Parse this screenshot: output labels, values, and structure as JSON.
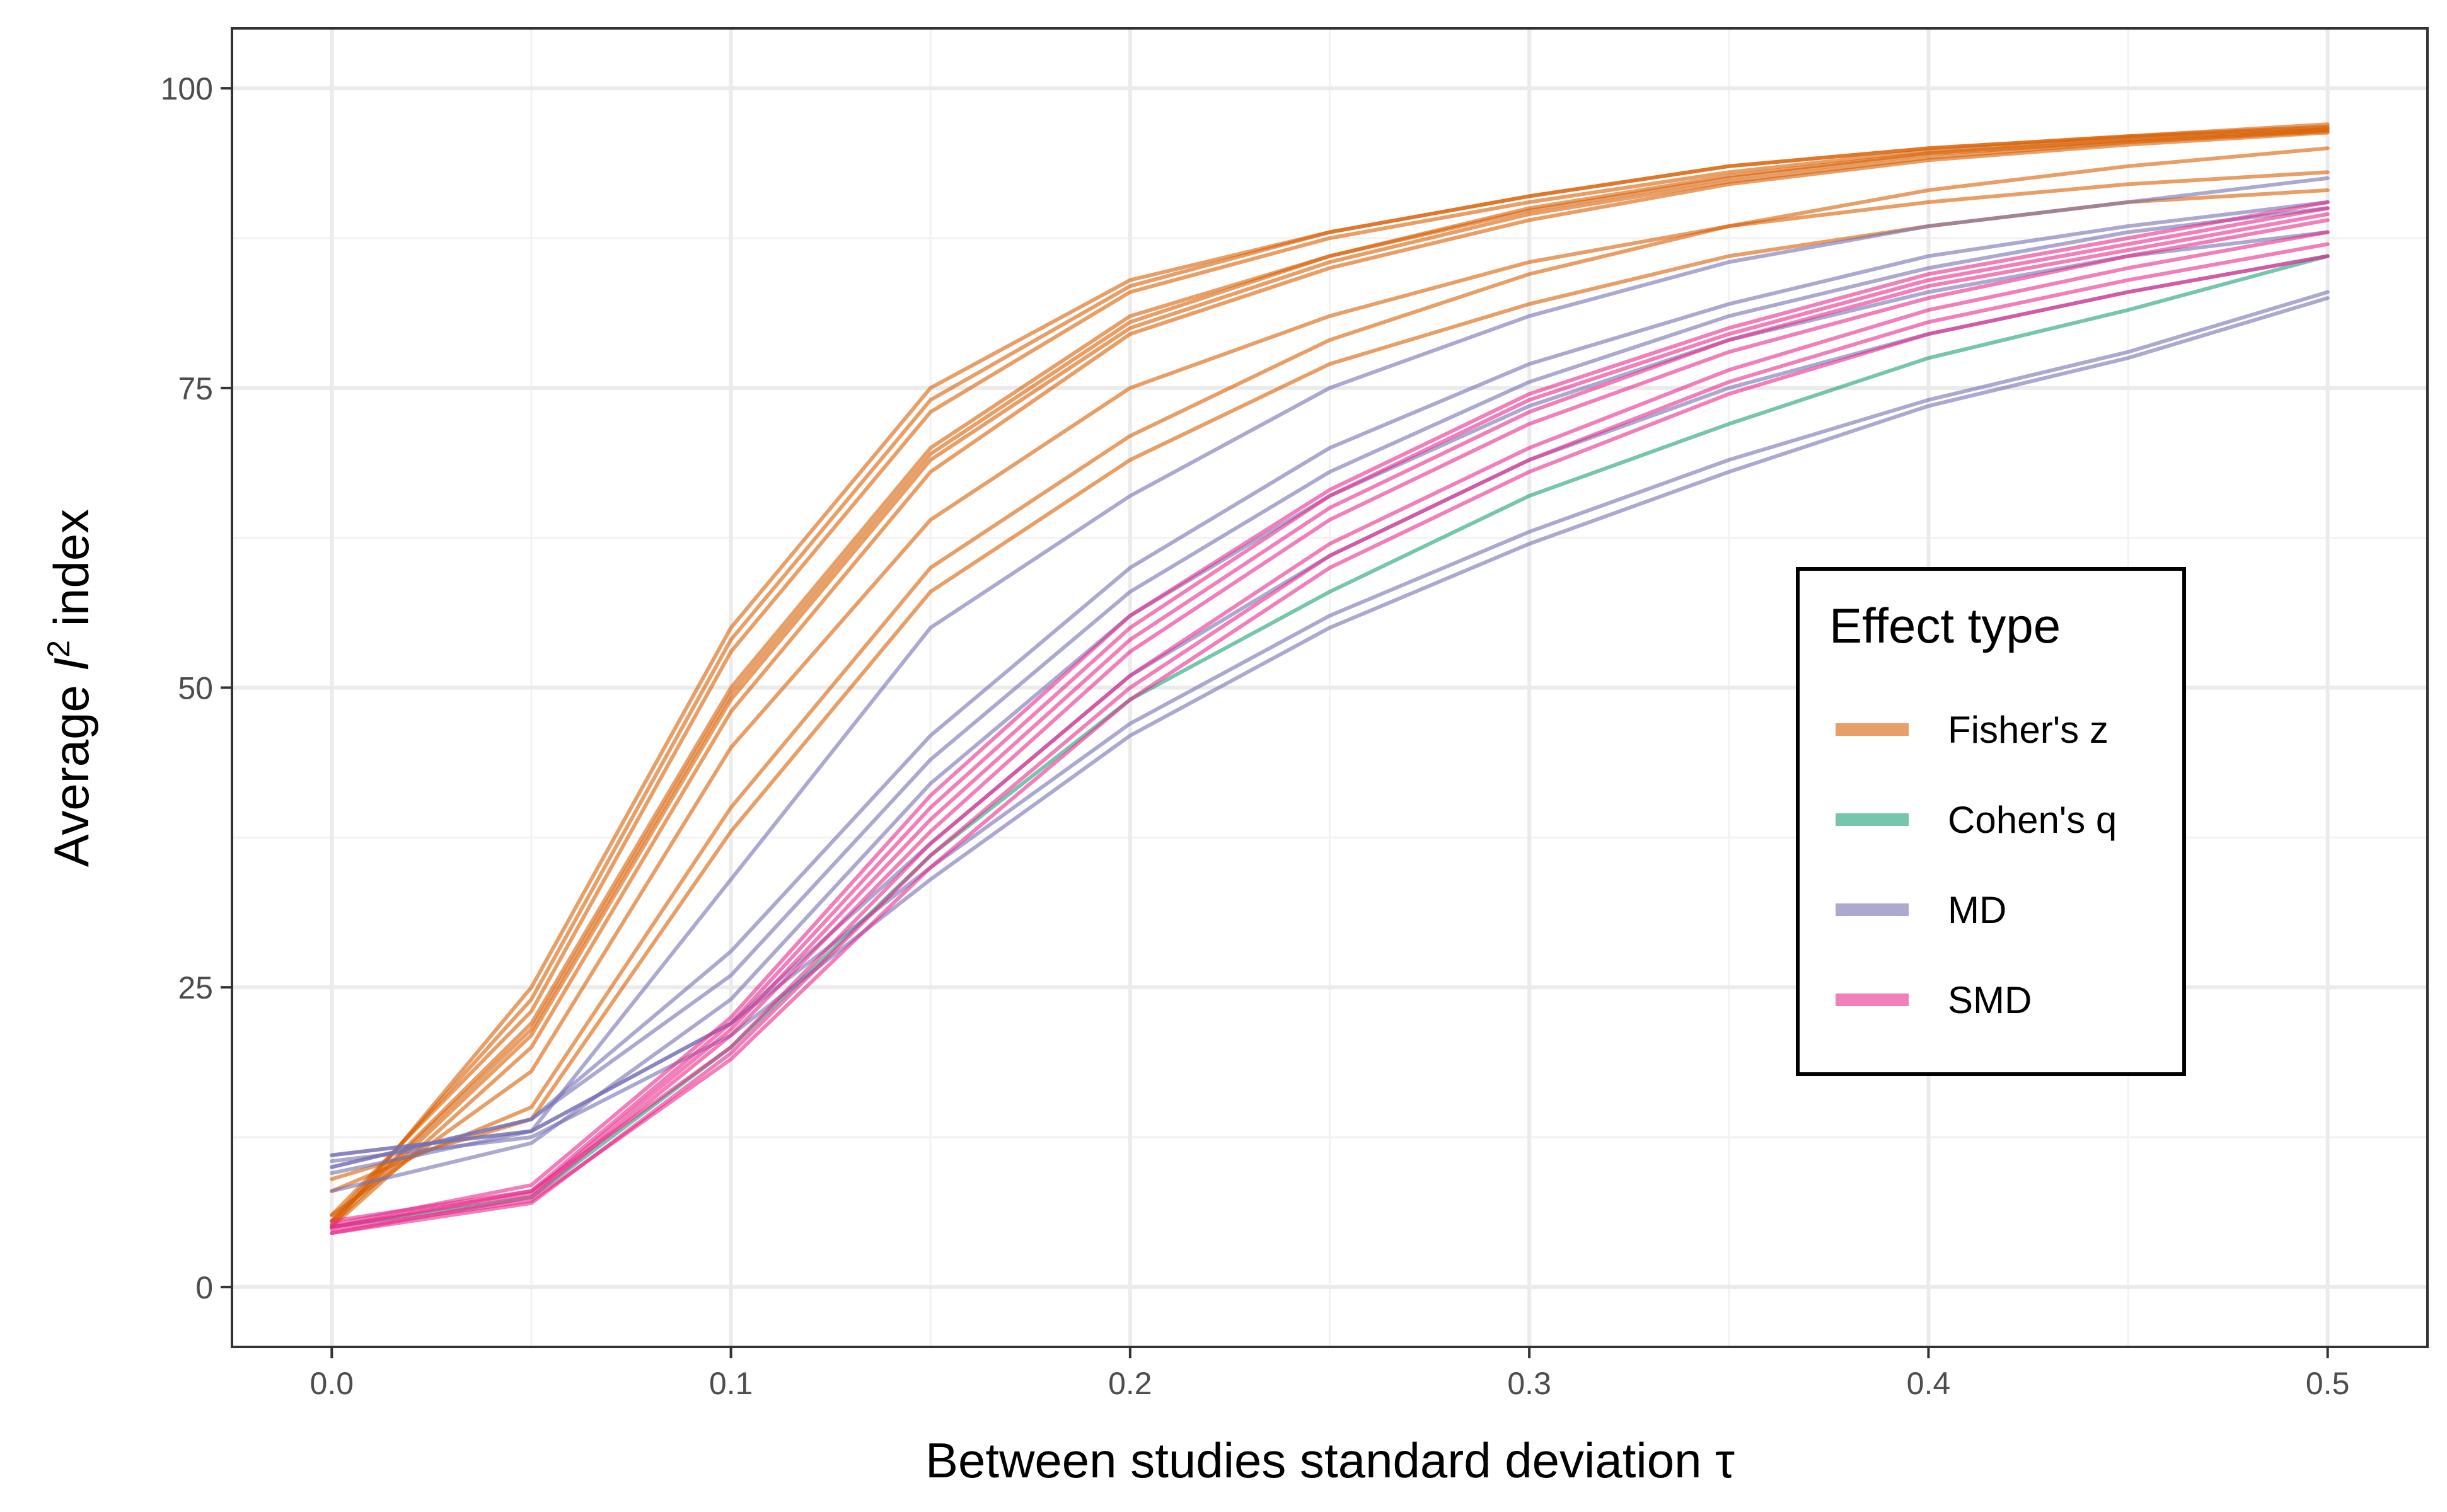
{
  "chart_data": {
    "type": "line",
    "xlabel": "Between studies standard deviation τ",
    "ylabel_parts": [
      "Average ",
      "I",
      "2",
      " index"
    ],
    "xlim": [
      -0.025,
      0.525
    ],
    "ylim": [
      -5,
      105
    ],
    "x_ticks": [
      0.0,
      0.1,
      0.2,
      0.3,
      0.4,
      0.5
    ],
    "x_tick_labels": [
      "0.0",
      "0.1",
      "0.2",
      "0.3",
      "0.4",
      "0.5"
    ],
    "y_ticks": [
      0,
      25,
      50,
      75,
      100
    ],
    "y_tick_labels": [
      "0",
      "25",
      "50",
      "75",
      "100"
    ],
    "grid": true,
    "legend": {
      "title": "Effect type",
      "placement": "right-inside",
      "entries": [
        {
          "label": "Fisher's z",
          "color": "#D95F02"
        },
        {
          "label": "Cohen's q",
          "color": "#1B9E77"
        },
        {
          "label": "MD",
          "color": "#7570B3"
        },
        {
          "label": "SMD",
          "color": "#E7298A"
        }
      ]
    },
    "x": [
      0.0,
      0.05,
      0.1,
      0.15,
      0.2,
      0.25,
      0.3,
      0.35,
      0.4,
      0.45,
      0.5
    ],
    "series": [
      {
        "group": "Fisher's z",
        "color": "#D95F02",
        "values": [
          5,
          25,
          55,
          75,
          84,
          88,
          91,
          93.5,
          95,
          96,
          97
        ]
      },
      {
        "group": "Fisher's z",
        "color": "#D95F02",
        "values": [
          5.5,
          24,
          54,
          74,
          83.5,
          88,
          91,
          93.5,
          95,
          96,
          96.8
        ]
      },
      {
        "group": "Fisher's z",
        "color": "#D95F02",
        "values": [
          6,
          23,
          53,
          73,
          83,
          87.5,
          90.5,
          93,
          94.8,
          95.9,
          96.7
        ]
      },
      {
        "group": "Fisher's z",
        "color": "#D95F02",
        "values": [
          5.5,
          22,
          50,
          70,
          81,
          86,
          89.8,
          92.5,
          94.5,
          95.6,
          96.5
        ]
      },
      {
        "group": "Fisher's z",
        "color": "#D95F02",
        "values": [
          5.2,
          21,
          49,
          69,
          80,
          85.5,
          89.5,
          92.2,
          94.2,
          95.5,
          96.4
        ]
      },
      {
        "group": "Fisher's z",
        "color": "#D95F02",
        "values": [
          5,
          20,
          48,
          68,
          79.5,
          85,
          89,
          92,
          94,
          95.3,
          96.3
        ]
      },
      {
        "group": "Fisher's z",
        "color": "#D95F02",
        "values": [
          5.5,
          21.5,
          49.5,
          69.5,
          80.5,
          86,
          90,
          92.7,
          94.6,
          95.7,
          96.6
        ]
      },
      {
        "group": "Fisher's z",
        "color": "#D95F02",
        "values": [
          6,
          18,
          45,
          64,
          75,
          81,
          85.5,
          88.5,
          90.5,
          92,
          93
        ]
      },
      {
        "group": "Fisher's z",
        "color": "#D95F02",
        "values": [
          8,
          15,
          40,
          60,
          71,
          79,
          84.5,
          88.5,
          91.5,
          93.5,
          95
        ]
      },
      {
        "group": "Fisher's z",
        "color": "#D95F02",
        "values": [
          9,
          14,
          38,
          58,
          69,
          77,
          82,
          86,
          88.5,
          90.5,
          91.5
        ]
      },
      {
        "group": "Cohen's q",
        "color": "#1B9E77",
        "values": [
          5,
          7.5,
          20,
          36,
          49,
          58,
          66,
          72,
          77.5,
          81.5,
          86
        ]
      },
      {
        "group": "MD",
        "color": "#7570B3",
        "values": [
          11,
          13,
          22,
          35,
          47,
          56,
          63,
          69,
          74,
          78,
          83
        ]
      },
      {
        "group": "MD",
        "color": "#7570B3",
        "values": [
          10.5,
          12.5,
          21,
          34,
          46,
          55,
          62,
          68,
          73.5,
          77.5,
          82.5
        ]
      },
      {
        "group": "MD",
        "color": "#7570B3",
        "values": [
          9.5,
          13,
          22,
          37,
          51,
          61,
          69,
          75,
          79.5,
          83,
          86
        ]
      },
      {
        "group": "MD",
        "color": "#7570B3",
        "values": [
          10,
          14,
          28,
          46,
          60,
          70,
          77,
          82,
          86,
          88.5,
          90.5
        ]
      },
      {
        "group": "MD",
        "color": "#7570B3",
        "values": [
          10,
          14,
          26,
          44,
          58,
          68,
          75.5,
          81,
          85,
          88,
          90
        ]
      },
      {
        "group": "MD",
        "color": "#7570B3",
        "values": [
          11,
          13,
          34,
          55,
          66,
          75,
          81,
          85.5,
          88.5,
          90.5,
          92.5
        ]
      },
      {
        "group": "MD",
        "color": "#7570B3",
        "values": [
          8,
          12,
          24,
          42,
          56,
          66,
          73.5,
          79,
          83,
          86,
          88
        ]
      },
      {
        "group": "SMD",
        "color": "#E7298A",
        "values": [
          5,
          8,
          22,
          40,
          55,
          66,
          74,
          79.5,
          84,
          87,
          90
        ]
      },
      {
        "group": "SMD",
        "color": "#E7298A",
        "values": [
          4.5,
          7.5,
          21,
          38,
          53,
          64,
          72,
          78,
          82.5,
          86,
          89
        ]
      },
      {
        "group": "SMD",
        "color": "#E7298A",
        "values": [
          5.5,
          8,
          20,
          37,
          51,
          62,
          70,
          76.5,
          81.5,
          85,
          88
        ]
      },
      {
        "group": "SMD",
        "color": "#E7298A",
        "values": [
          4.8,
          7.2,
          19,
          35,
          49,
          60,
          68,
          74.5,
          79.5,
          83,
          86
        ]
      },
      {
        "group": "SMD",
        "color": "#E7298A",
        "values": [
          5,
          7.8,
          21.5,
          39,
          54,
          65,
          73,
          79,
          83.5,
          86.5,
          89.5
        ]
      },
      {
        "group": "SMD",
        "color": "#E7298A",
        "values": [
          5.2,
          8.5,
          22.5,
          41,
          56,
          66.5,
          74.5,
          80,
          84.5,
          87.5,
          90.5
        ]
      },
      {
        "group": "SMD",
        "color": "#E7298A",
        "values": [
          4.5,
          7,
          19.5,
          36,
          50,
          61,
          69,
          75.5,
          80.5,
          84,
          87
        ]
      }
    ]
  }
}
